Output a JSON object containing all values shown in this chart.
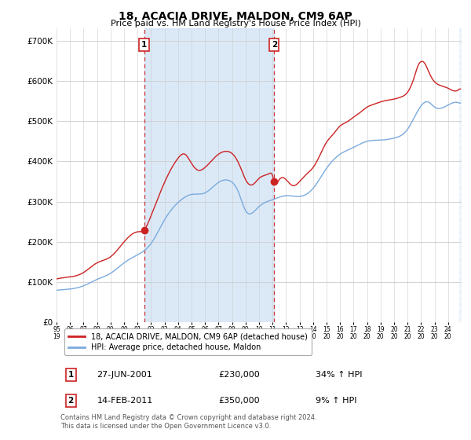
{
  "title": "18, ACACIA DRIVE, MALDON, CM9 6AP",
  "subtitle": "Price paid vs. HM Land Registry's House Price Index (HPI)",
  "ylabel_ticks": [
    "£0",
    "£100K",
    "£200K",
    "£300K",
    "£400K",
    "£500K",
    "£600K",
    "£700K"
  ],
  "ytick_vals": [
    0,
    100000,
    200000,
    300000,
    400000,
    500000,
    600000,
    700000
  ],
  "ylim": [
    0,
    730000
  ],
  "xlim_start": 1995.0,
  "xlim_end": 2025.0,
  "bg_color": "#dce9f5",
  "line1_color": "#cc2222",
  "line2_color": "#7aaadd",
  "sale1_date": 2001.49,
  "sale1_price": 230000,
  "sale2_date": 2011.12,
  "sale2_price": 350000,
  "legend1": "18, ACACIA DRIVE, MALDON, CM9 6AP (detached house)",
  "legend2": "HPI: Average price, detached house, Maldon",
  "note1_label": "1",
  "note1_date": "27-JUN-2001",
  "note1_price": "£230,000",
  "note1_pct": "34% ↑ HPI",
  "note2_label": "2",
  "note2_date": "14-FEB-2011",
  "note2_price": "£350,000",
  "note2_pct": "9% ↑ HPI",
  "footer": "Contains HM Land Registry data © Crown copyright and database right 2024.\nThis data is licensed under the Open Government Licence v3.0."
}
